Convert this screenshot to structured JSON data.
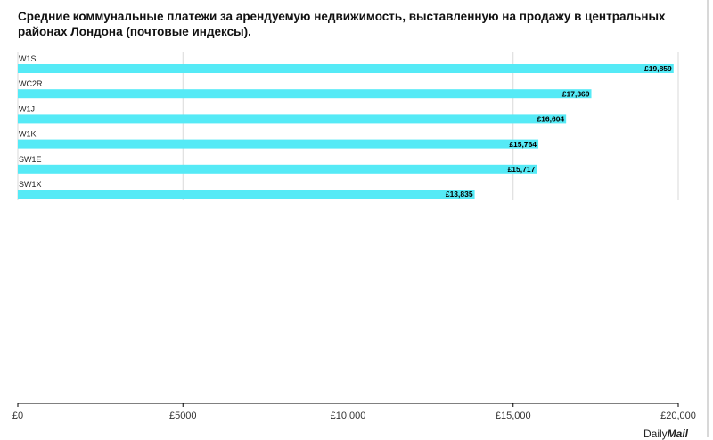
{
  "title": "Средние коммунальные платежи за арендуемую недвижимость, выставленную на продажу в центральных районах Лондона (почтовые индексы).",
  "footer": {
    "brand_light": "Daily",
    "brand_bold": "Mail"
  },
  "colors": {
    "bar": "#55eaf6",
    "grid": "#d9d9d9",
    "axis": "#000000"
  },
  "chart_data": {
    "type": "bar",
    "orientation": "horizontal",
    "title": "Средние коммунальные платежи за арендуемую недвижимость, выставленную на продажу в центральных районах Лондона (почтовые индексы).",
    "categories": [
      "W1S",
      "WC2R",
      "W1J",
      "W1K",
      "SW1E",
      "SW1X"
    ],
    "values": [
      19859,
      17369,
      16604,
      15764,
      15717,
      13835
    ],
    "value_labels": [
      "£19,859",
      "£17,369",
      "£16,604",
      "£15,764",
      "£15,717",
      "£13,835"
    ],
    "xlim": [
      0,
      20000
    ],
    "xticks": [
      0,
      5000,
      10000,
      15000,
      20000
    ],
    "xtick_labels": [
      "£0",
      "£5000",
      "£10,000",
      "£15,000",
      "£20,000"
    ],
    "grid": true,
    "xlabel": "",
    "ylabel": ""
  }
}
